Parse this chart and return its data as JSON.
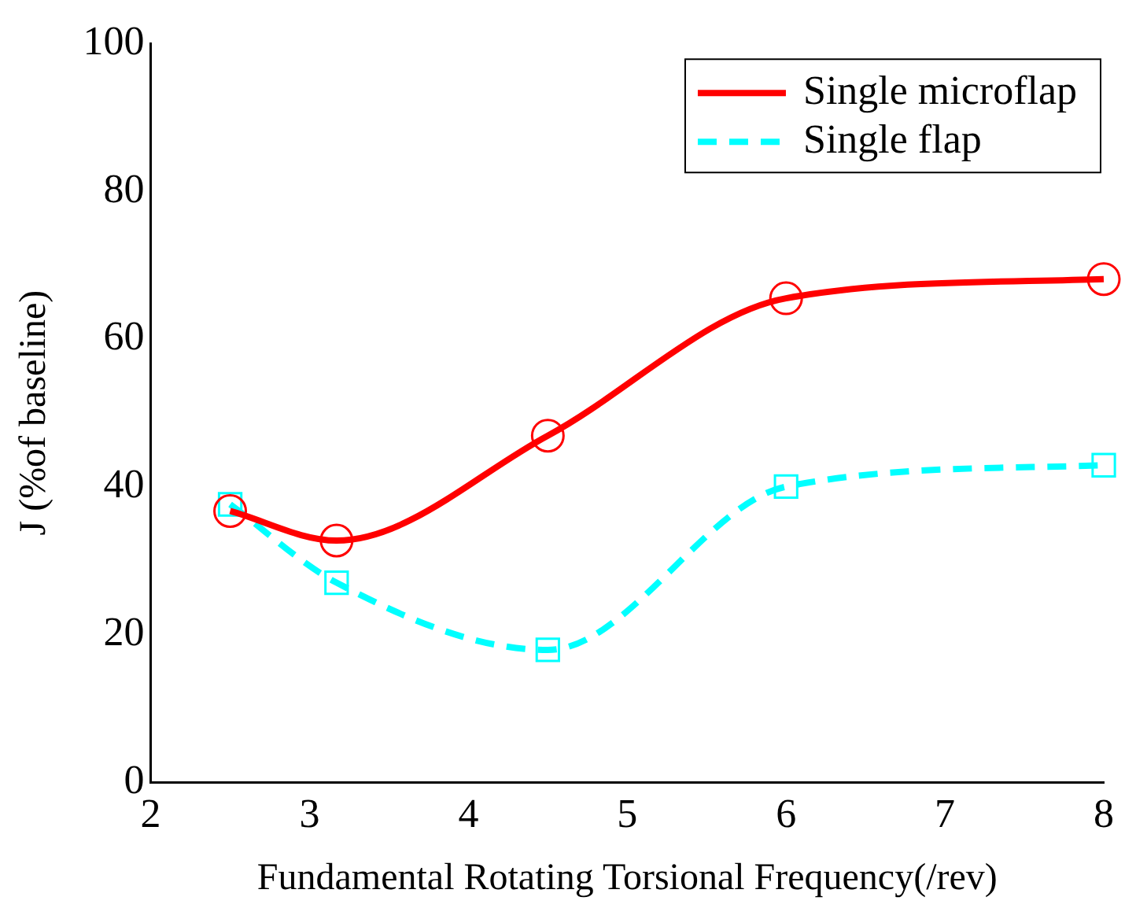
{
  "chart_data": {
    "type": "line",
    "xlabel": "Fundamental Rotating Torsional Frequency(/rev)",
    "ylabel": "J (%of baseline)",
    "xlim": [
      2,
      8
    ],
    "xticks": [
      2,
      3,
      4,
      5,
      6,
      7,
      8
    ],
    "ylim": [
      0,
      100
    ],
    "yticks": [
      0,
      20,
      40,
      60,
      80,
      100
    ],
    "grid": false,
    "legend": "top right",
    "series": [
      {
        "name": "Single microflap",
        "color": "#ff0000",
        "x": [
          2.5,
          3.17,
          4.5,
          6,
          8
        ],
        "values": [
          36.7,
          32.7,
          46.9,
          65.5,
          68.1
        ],
        "marker": "circle",
        "line_style": "solid"
      },
      {
        "name": "Single flap",
        "color": "#00ffff",
        "x": [
          2.5,
          3.17,
          4.5,
          6,
          8
        ],
        "values": [
          37.6,
          27,
          17.9,
          40,
          42.9
        ],
        "marker": "square",
        "line_style": "dashed"
      }
    ]
  }
}
